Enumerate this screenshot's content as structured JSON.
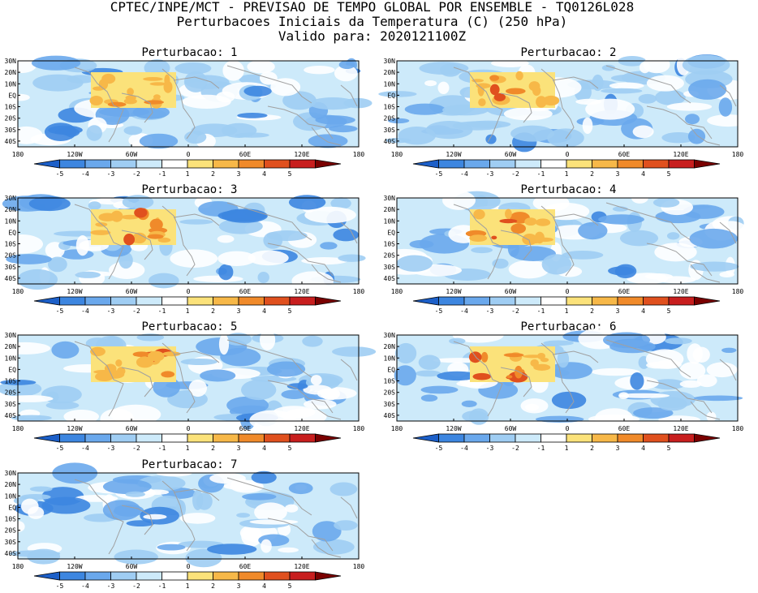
{
  "header": {
    "line1": "CPTEC/INPE/MCT - PREVISAO DE TEMPO GLOBAL POR ENSEMBLE - TQ0126L028",
    "line2": "Perturbacoes Iniciais da Temperatura (C) (250 hPa)",
    "line3": "Valido para: 2020121100Z"
  },
  "panels": [
    {
      "title": "Perturbacao: 1"
    },
    {
      "title": "Perturbacao: 2"
    },
    {
      "title": "Perturbacao: 3"
    },
    {
      "title": "Perturbacao: 4"
    },
    {
      "title": "Perturbacao: 5"
    },
    {
      "title": "Perturbacao: 6"
    },
    {
      "title": "Perturbacao: 7"
    }
  ],
  "axes": {
    "lat_labels": [
      "30N",
      "20N",
      "10N",
      "EQ",
      "10S",
      "20S",
      "30S",
      "40S"
    ],
    "lon_labels": [
      "180",
      "120W",
      "60W",
      "0",
      "60E",
      "120E",
      "180"
    ]
  },
  "colorbar": {
    "labels": [
      "-5",
      "-4",
      "-3",
      "-2",
      "-1",
      "1",
      "2",
      "3",
      "4",
      "5"
    ],
    "colors": [
      "#1c5fc8",
      "#3d86e0",
      "#6aa8ec",
      "#9fcdf3",
      "#cdeafa",
      "#ffffff",
      "#fbe27a",
      "#f7b848",
      "#f08a2a",
      "#e0501e",
      "#c81e1e",
      "#7a0000"
    ]
  }
}
